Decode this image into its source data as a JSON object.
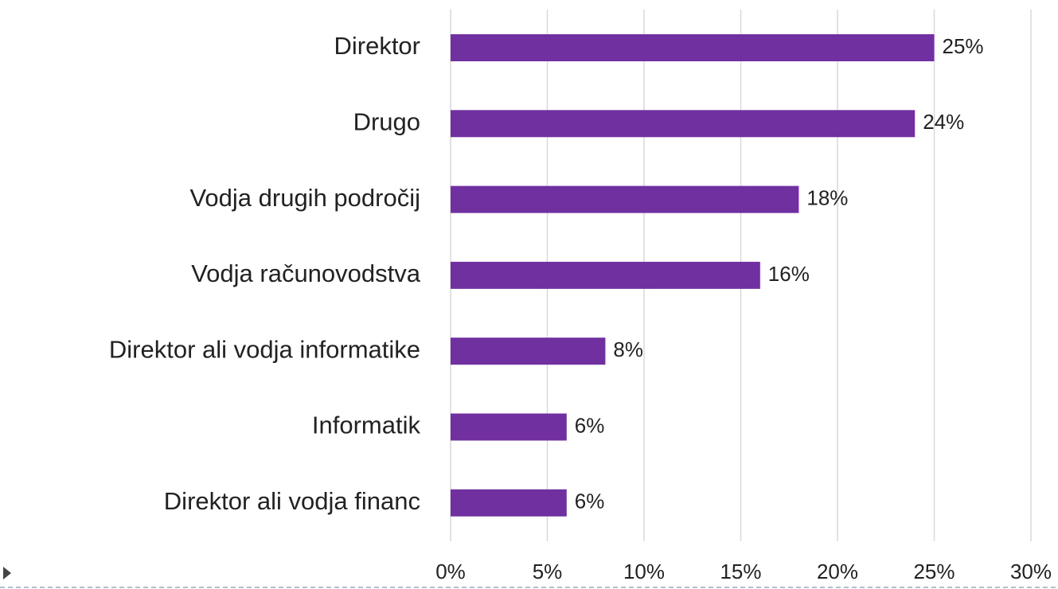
{
  "chart_data": {
    "type": "bar",
    "orientation": "horizontal",
    "categories": [
      "Direktor",
      "Drugo",
      "Vodja drugih področij",
      "Vodja računovodstva",
      "Direktor ali vodja informatike",
      "Informatik",
      "Direktor ali vodja financ"
    ],
    "values": [
      25,
      24,
      18,
      16,
      8,
      6,
      6
    ],
    "value_labels": [
      "25%",
      "24%",
      "18%",
      "16%",
      "8%",
      "6%",
      "6%"
    ],
    "color": "#7030a0",
    "xlim": [
      0,
      30
    ],
    "xticks": [
      {
        "value": 0,
        "label": "0%"
      },
      {
        "value": 5,
        "label": "5%"
      },
      {
        "value": 10,
        "label": "10%"
      },
      {
        "value": 15,
        "label": "15%"
      },
      {
        "value": 20,
        "label": "20%"
      },
      {
        "value": 25,
        "label": "25%"
      },
      {
        "value": 30,
        "label": "30%"
      }
    ],
    "grid": true
  }
}
